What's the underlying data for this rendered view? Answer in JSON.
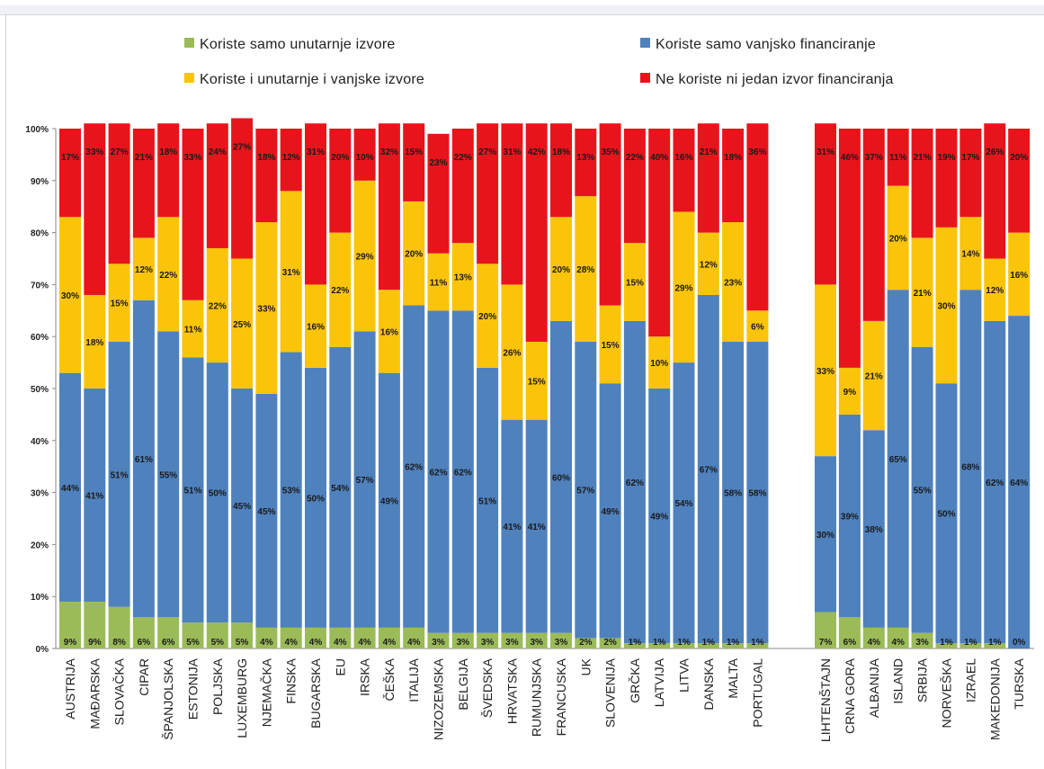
{
  "colors": {
    "internal_only": "#9bbb59",
    "external_only": "#4f81bd",
    "both": "#fac40a",
    "none": "#e8141c"
  },
  "legend": {
    "internal_only": "Koriste samo unutarnje izvore",
    "external_only": "Koriste samo vanjsko financiranje",
    "both": "Koriste i unutarnje i vanjske izvore",
    "none": "Ne koriste ni jedan izvor financiranja"
  },
  "chart_data": {
    "type": "bar",
    "stacked": true,
    "normalized_percent": true,
    "title": "",
    "xlabel": "",
    "ylabel": "",
    "ylim": [
      0,
      100
    ],
    "yticks": [
      "0%",
      "10%",
      "20%",
      "30%",
      "40%",
      "50%",
      "60%",
      "70%",
      "80%",
      "90%",
      "100%"
    ],
    "grid": false,
    "legend_position": "top",
    "groups": [
      {
        "categories": [
          "AUSTRIJA",
          "MAĐARSKA",
          "SLOVAČKA",
          "CIPAR",
          "ŠPANJOLSKA",
          "ESTONIJA",
          "POLJSKA",
          "LUXEMBURG",
          "NJEMAČKA",
          "FINSKA",
          "BUGARSKA",
          "EU",
          "IRSKA",
          "ČEŠKA",
          "ITALIJA",
          "NIZOZEMSKA",
          "BELGIJA",
          "ŠVEDSKA",
          "HRVATSKA",
          "RUMUNJSKA",
          "FRANCUSKA",
          "UK",
          "SLOVENIJA",
          "GRČKA",
          "LATVIJA",
          "LITVA",
          "DANSKA",
          "MALTA",
          "PORTUGAL"
        ],
        "series": [
          {
            "name": "Koriste samo unutarnje izvore",
            "values": [
              9,
              9,
              8,
              6,
              6,
              5,
              5,
              5,
              4,
              4,
              4,
              4,
              4,
              4,
              4,
              3,
              3,
              3,
              3,
              3,
              3,
              2,
              2,
              1,
              1,
              1,
              1,
              1,
              1
            ]
          },
          {
            "name": "Koriste samo vanjsko financiranje",
            "values": [
              44,
              41,
              51,
              61,
              55,
              51,
              50,
              45,
              45,
              53,
              50,
              54,
              57,
              49,
              62,
              62,
              62,
              51,
              41,
              41,
              60,
              57,
              49,
              62,
              49,
              54,
              67,
              58,
              58
            ]
          },
          {
            "name": "Koriste i unutarnje i vanjske izvore",
            "values": [
              30,
              18,
              15,
              12,
              22,
              11,
              22,
              25,
              33,
              31,
              16,
              22,
              29,
              16,
              20,
              11,
              13,
              20,
              26,
              15,
              20,
              28,
              15,
              15,
              10,
              29,
              12,
              23,
              6
            ]
          },
          {
            "name": "Ne koriste ni jedan izvor financiranja",
            "values": [
              17,
              33,
              27,
              21,
              18,
              33,
              24,
              27,
              18,
              12,
              31,
              20,
              10,
              32,
              15,
              23,
              22,
              27,
              31,
              42,
              18,
              13,
              35,
              22,
              40,
              16,
              21,
              18,
              36
            ]
          }
        ]
      },
      {
        "categories": [
          "LIHTENŠTAJN",
          "CRNA GORA",
          "ALBANIJA",
          "ISLAND",
          "SRBIJA",
          "NORVEŠKA",
          "IZRAEL",
          "MAKEDONIJA",
          "TURSKA"
        ],
        "series": [
          {
            "name": "Koriste samo unutarnje izvore",
            "values": [
              7,
              6,
              4,
              4,
              3,
              1,
              1,
              1,
              0
            ]
          },
          {
            "name": "Koriste samo vanjsko financiranje",
            "values": [
              30,
              39,
              38,
              65,
              55,
              50,
              68,
              62,
              64
            ]
          },
          {
            "name": "Koriste i unutarnje i vanjske izvore",
            "values": [
              33,
              9,
              21,
              20,
              21,
              30,
              14,
              12,
              16
            ]
          },
          {
            "name": "Ne koriste ni jedan izvor financiranja",
            "values": [
              31,
              46,
              37,
              11,
              21,
              19,
              17,
              26,
              20
            ]
          }
        ]
      }
    ]
  }
}
